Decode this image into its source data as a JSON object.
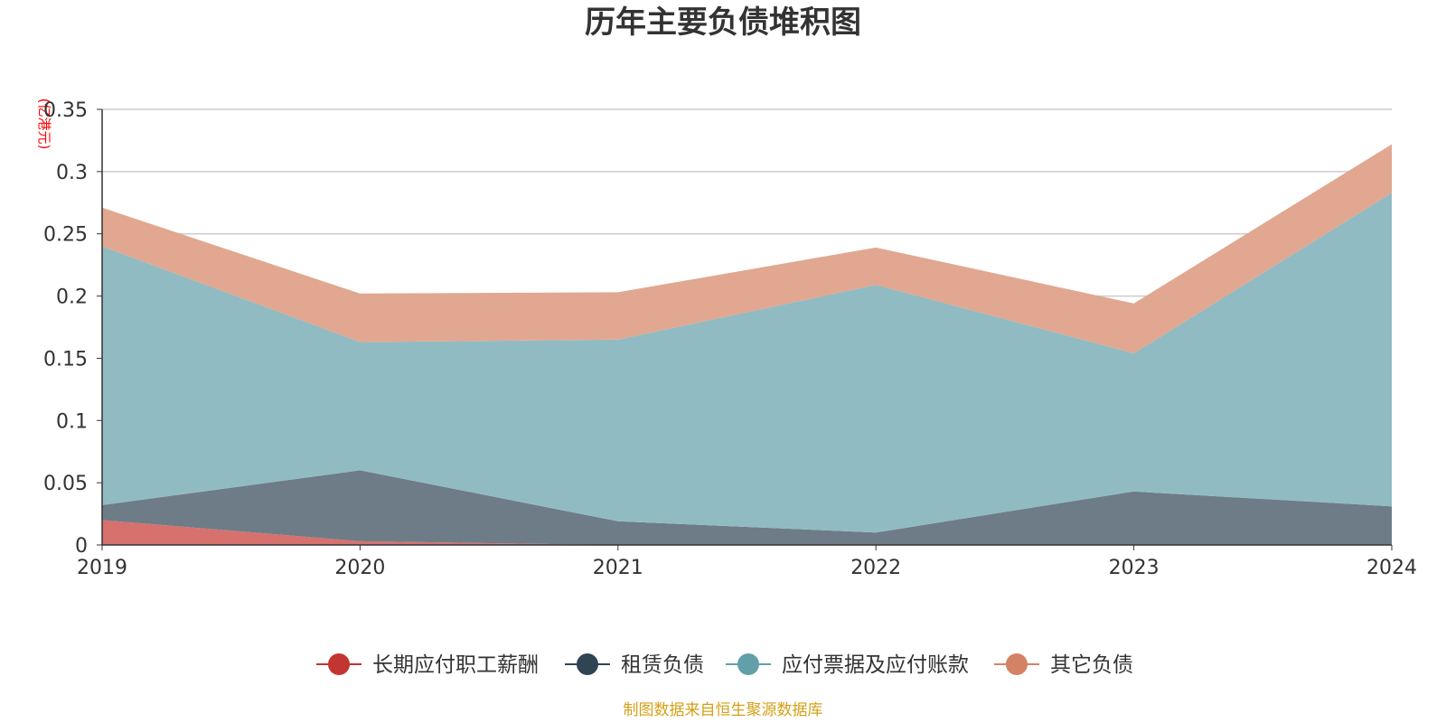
{
  "chart_data": {
    "type": "area",
    "stacked": true,
    "title": "历年主要负债堆积图",
    "ylabel": "(亿港元)",
    "xlabel": "",
    "categories": [
      "2019",
      "2020",
      "2021",
      "2022",
      "2023",
      "2024"
    ],
    "ylim": [
      0,
      0.35
    ],
    "yticks": [
      "0",
      "0.05",
      "0.1",
      "0.15",
      "0.2",
      "0.25",
      "0.3",
      "0.35"
    ],
    "grid": true,
    "legend_position": "bottom",
    "series": [
      {
        "name": "长期应付职工薪酬",
        "values": [
          0.02,
          0.003,
          0.0,
          0.0,
          0.0,
          0.0
        ],
        "color": "#c23531",
        "fill": "#d6716e"
      },
      {
        "name": "租赁负债",
        "values": [
          0.012,
          0.057,
          0.019,
          0.01,
          0.043,
          0.031
        ],
        "color": "#2f4554",
        "fill": "#6e7c87"
      },
      {
        "name": "应付票据及应付账款",
        "values": [
          0.208,
          0.103,
          0.146,
          0.199,
          0.111,
          0.252
        ],
        "color": "#61a0a8",
        "fill": "#91bbc2"
      },
      {
        "name": "其它负债",
        "values": [
          0.031,
          0.039,
          0.038,
          0.03,
          0.04,
          0.039
        ],
        "color": "#d48265",
        "fill": "#e1a791"
      }
    ]
  },
  "footer": {
    "source": "制图数据来自恒生聚源数据库"
  },
  "colors": {
    "axis": "#333333",
    "grid": "#cccccc",
    "unit": "#ff0000",
    "source": "#d4a017"
  }
}
